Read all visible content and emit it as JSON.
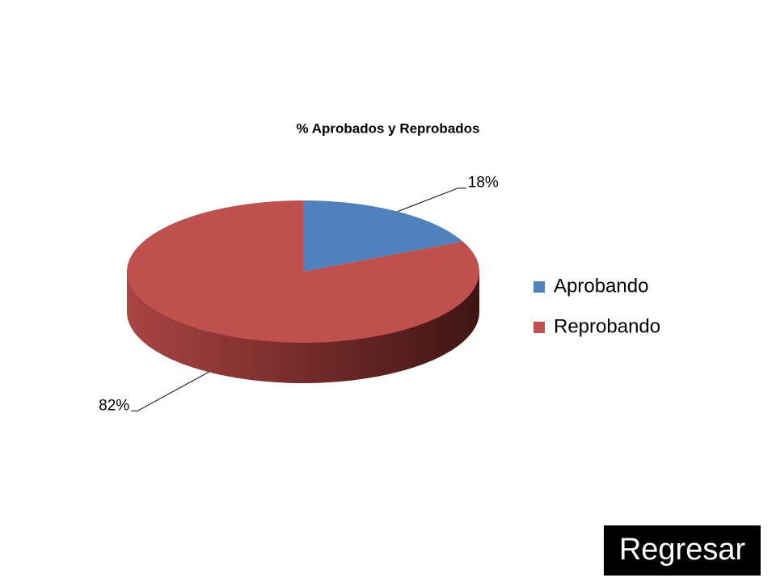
{
  "chart_data": {
    "type": "pie",
    "title": "% Aprobados y Reprobados",
    "categories": [
      "Aprobando",
      "Reprobando"
    ],
    "values": [
      18,
      82
    ],
    "value_labels": [
      "18%",
      "82%"
    ],
    "colors": [
      "#4f81bd",
      "#c0504d"
    ],
    "legend": "right"
  },
  "button": {
    "label": "Regresar"
  }
}
